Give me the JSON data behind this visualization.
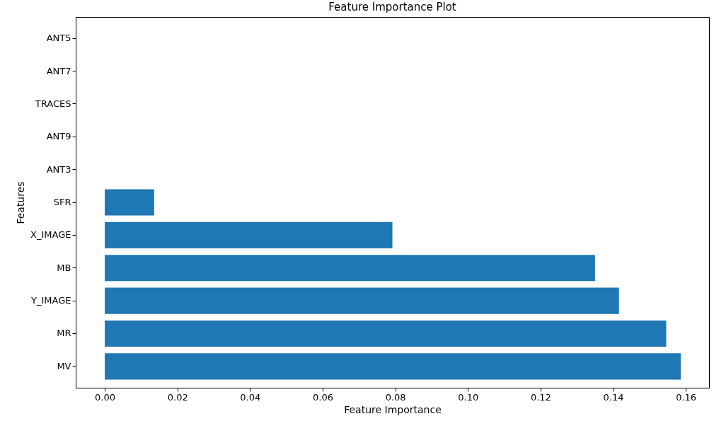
{
  "chart_data": {
    "type": "bar",
    "orientation": "horizontal",
    "title": "Feature Importance Plot",
    "xlabel": "Feature Importance",
    "ylabel": "Features",
    "categories": [
      "ANT5",
      "ANT7",
      "TRACES",
      "ANT9",
      "ANT3",
      "SFR",
      "X_IMAGE",
      "MB",
      "Y_IMAGE",
      "MR",
      "MV"
    ],
    "values": [
      0,
      0,
      0,
      0,
      0,
      0.0136,
      0.0792,
      0.135,
      0.1416,
      0.1546,
      0.1586
    ],
    "color": "#1f77b4",
    "xlim": [
      -0.008,
      0.1664
    ],
    "xticks": [
      {
        "value": 0,
        "label": "0.00"
      },
      {
        "value": 0.02,
        "label": "0.02"
      },
      {
        "value": 0.04,
        "label": "0.04"
      },
      {
        "value": 0.06,
        "label": "0.06"
      },
      {
        "value": 0.08,
        "label": "0.08"
      },
      {
        "value": 0.1,
        "label": "0.10"
      },
      {
        "value": 0.12,
        "label": "0.12"
      },
      {
        "value": 0.14,
        "label": "0.14"
      },
      {
        "value": 0.16,
        "label": "0.16"
      }
    ],
    "grid": false
  }
}
